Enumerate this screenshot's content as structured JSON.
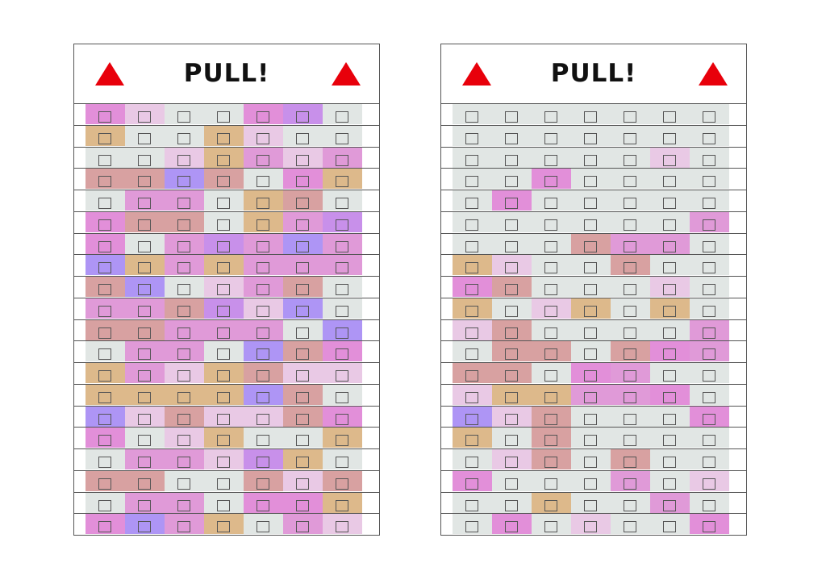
{
  "colors": {
    "e": "#e1e6e4",
    "p": "#e28fd9",
    "l": "#e9c9e5",
    "t": "#ddb98b",
    "r": "#d8a1a1",
    "v": "#ae95f5",
    "w": "#c890ea",
    "m": "#e09ad8",
    "triangle": "#e8000b"
  },
  "cards": [
    {
      "title": "PULL!",
      "rows": [
        "pleepwe",
        "teetlee",
        "eeltmlm",
        "rrvrept",
        "emmetre",
        "prretmw",
        "pemwmvm",
        "vtmtmmm",
        "rvelmre",
        "mmrwlve",
        "rrmmmev",
        "emmevrp",
        "tmltrll",
        "ttttvre",
        "vlrllrp",
        "pelteet",
        "emmlwte",
        "rreerlr",
        "emmeppt",
        "pvmteml"
      ]
    },
    {
      "title": "PULL!",
      "rows": [
        "eeeeeee",
        "eeeeeee",
        "eeeeele",
        "eepeeee",
        "epeeeee",
        "eeeeeem",
        "eeermme",
        "tleeree",
        "preeele",
        "teltete",
        "lreeeem",
        "errerpm",
        "rrepmee",
        "lttmmpe",
        "vlreeep",
        "tereeee",
        "elreree",
        "peeemel",
        "eeteeme",
        "epeleep"
      ]
    }
  ]
}
